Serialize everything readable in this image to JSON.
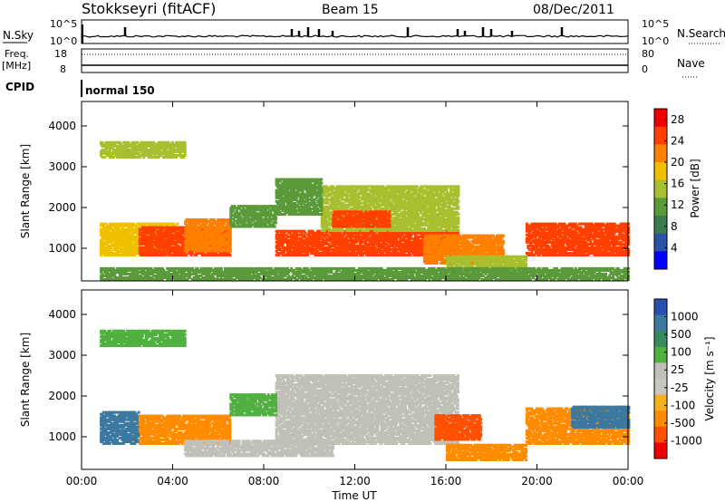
{
  "header": {
    "radar": "Stokkseyri (fitACF)",
    "beam": "Beam 15",
    "date": "08/Dec/2011"
  },
  "top_panels": {
    "nsky_label": "N.Sky",
    "nsky_ticks": [
      "10^5",
      "10^0"
    ],
    "nsearch_label": "N.Search",
    "nsearch_ticks": [
      "10^5",
      "10^0"
    ],
    "freq_label": "Freq.",
    "freq_unit": "[MHz]",
    "freq_ticks": [
      "18",
      "8"
    ],
    "nave_label": "Nave",
    "nave_ticks": [
      "80",
      "0"
    ],
    "cpid_label": "CPID",
    "cpid_value": "normal 150"
  },
  "colors": {
    "power": [
      "#0000ff",
      "#2a52a8",
      "#3c7a50",
      "#5a9a3a",
      "#a8c030",
      "#f0c000",
      "#ff8000",
      "#ff4000",
      "#ee0000"
    ],
    "velocity": [
      "#2850b0",
      "#3c78a0",
      "#3a8a60",
      "#50b040",
      "#c0c0b8",
      "#c8c8c0",
      "#f5b020",
      "#ff8c00",
      "#ff5000",
      "#ee0000"
    ]
  },
  "chart_data": [
    {
      "type": "heatmap",
      "name": "power",
      "ylabel": "Slant Range [km]",
      "xlabel": "",
      "xlim": [
        "00:00",
        "24:00"
      ],
      "ylim": [
        200,
        4600
      ],
      "x_ticks": [
        "00:00",
        "04:00",
        "08:00",
        "12:00",
        "16:00",
        "20:00",
        "00:00"
      ],
      "y_ticks": [
        "1000",
        "2000",
        "3000",
        "4000"
      ],
      "colorbar": {
        "label": "Power [dB]",
        "ticks": [
          "4",
          "8",
          "12",
          "16",
          "20",
          "24",
          "28"
        ],
        "range": [
          0,
          30
        ]
      },
      "regions": [
        {
          "t0": 0.8,
          "t1": 4.2,
          "r0": 800,
          "r1": 1600,
          "v": 18
        },
        {
          "t0": 2.5,
          "t1": 6.5,
          "r0": 800,
          "r1": 1500,
          "v": 26
        },
        {
          "t0": 4.5,
          "t1": 6.5,
          "r0": 900,
          "r1": 1700,
          "v": 22
        },
        {
          "t0": 0.8,
          "t1": 4.5,
          "r0": 3200,
          "r1": 3600,
          "v": 14
        },
        {
          "t0": 8.5,
          "t1": 16.5,
          "r0": 800,
          "r1": 1400,
          "v": 24
        },
        {
          "t0": 10.5,
          "t1": 16.5,
          "r0": 1400,
          "r1": 2500,
          "v": 16
        },
        {
          "t0": 11.0,
          "t1": 13.5,
          "r0": 1500,
          "r1": 1900,
          "v": 26
        },
        {
          "t0": 15.0,
          "t1": 18.5,
          "r0": 600,
          "r1": 1300,
          "v": 20
        },
        {
          "t0": 16.0,
          "t1": 19.5,
          "r0": 400,
          "r1": 800,
          "v": 14
        },
        {
          "t0": 19.5,
          "t1": 24.0,
          "r0": 800,
          "r1": 1600,
          "v": 24
        },
        {
          "t0": 6.5,
          "t1": 8.5,
          "r0": 1500,
          "r1": 2000,
          "v": 12
        },
        {
          "t0": 8.5,
          "t1": 10.5,
          "r0": 1800,
          "r1": 2700,
          "v": 10
        },
        {
          "t0": 0.8,
          "t1": 24.0,
          "r0": 200,
          "r1": 500,
          "v": 10
        }
      ]
    },
    {
      "type": "heatmap",
      "name": "velocity",
      "ylabel": "Slant Range [km]",
      "xlabel": "Time UT",
      "xlim": [
        "00:00",
        "24:00"
      ],
      "ylim": [
        200,
        4600
      ],
      "x_ticks": [
        "00:00",
        "04:00",
        "08:00",
        "12:00",
        "16:00",
        "20:00",
        "00:00"
      ],
      "y_ticks": [
        "1000",
        "2000",
        "3000",
        "4000"
      ],
      "colorbar": {
        "label": "Velocity [m s⁻¹]",
        "ticks": [
          "1000",
          "500",
          "100",
          "25",
          "-25",
          "-100",
          "-500",
          "-1000"
        ]
      },
      "regions": [
        {
          "t0": 0.8,
          "t1": 2.5,
          "r0": 800,
          "r1": 1600,
          "v": "500"
        },
        {
          "t0": 2.5,
          "t1": 6.5,
          "r0": 800,
          "r1": 1500,
          "v": "-100"
        },
        {
          "t0": 0.8,
          "t1": 4.5,
          "r0": 3200,
          "r1": 3600,
          "v": "100"
        },
        {
          "t0": 4.5,
          "t1": 11.0,
          "r0": 500,
          "r1": 900,
          "v": "25"
        },
        {
          "t0": 8.5,
          "t1": 16.5,
          "r0": 800,
          "r1": 2500,
          "v": "25"
        },
        {
          "t0": 15.5,
          "t1": 17.5,
          "r0": 900,
          "r1": 1500,
          "v": "-500"
        },
        {
          "t0": 16.0,
          "t1": 19.5,
          "r0": 400,
          "r1": 800,
          "v": "-100"
        },
        {
          "t0": 19.5,
          "t1": 24.0,
          "r0": 800,
          "r1": 1700,
          "v": "-100"
        },
        {
          "t0": 21.5,
          "t1": 24.0,
          "r0": 1200,
          "r1": 1700,
          "v": "500"
        },
        {
          "t0": 6.5,
          "t1": 8.5,
          "r0": 1500,
          "r1": 2000,
          "v": "100"
        }
      ]
    }
  ]
}
